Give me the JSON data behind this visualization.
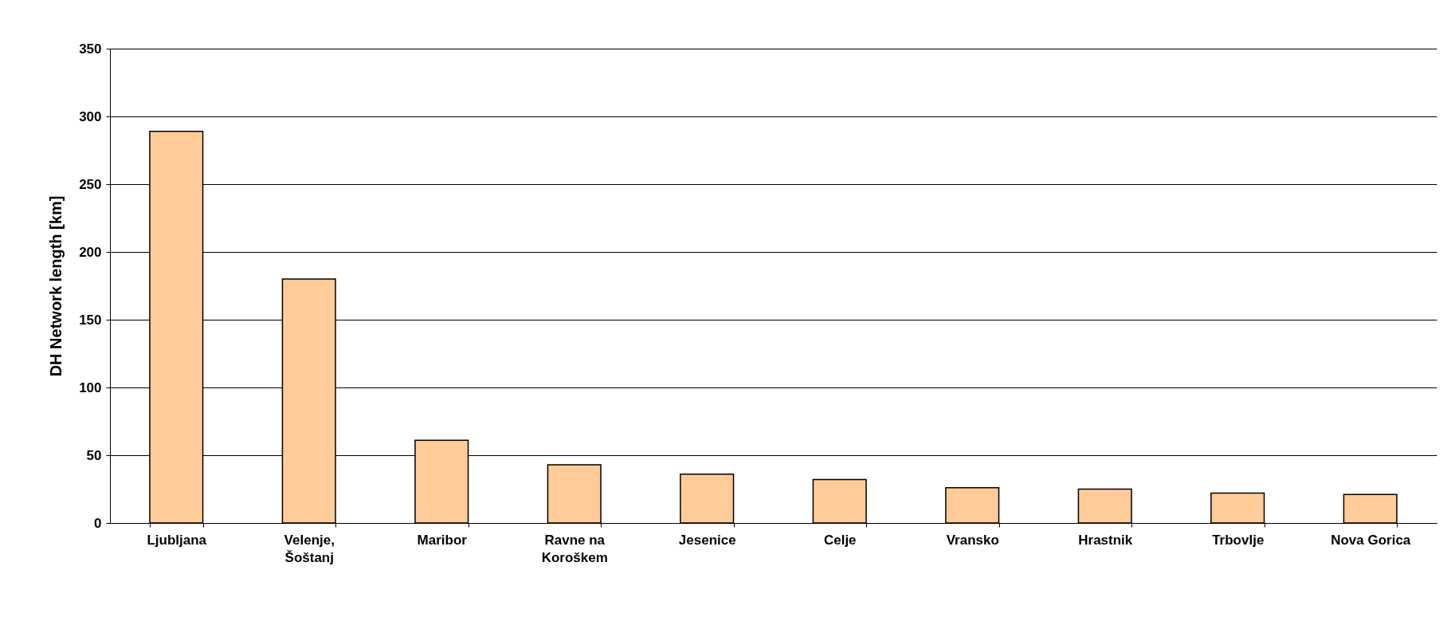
{
  "chart_data": {
    "type": "bar",
    "ylabel": "DH Network length [km]",
    "categories": [
      "Ljubljana",
      "Velenje,\nŠoštanj",
      "Maribor",
      "Ravne na\nKoroškem",
      "Jesenice",
      "Celje",
      "Vransko",
      "Hrastnik",
      "Trbovlje",
      "Nova Gorica"
    ],
    "values": [
      289,
      180,
      61,
      43,
      36,
      32,
      26,
      25,
      22,
      21
    ],
    "color": "#ffcc99",
    "ylim": [
      0,
      350
    ],
    "yticks": [
      0,
      50,
      100,
      150,
      200,
      250,
      300,
      350
    ],
    "grid": "y"
  }
}
